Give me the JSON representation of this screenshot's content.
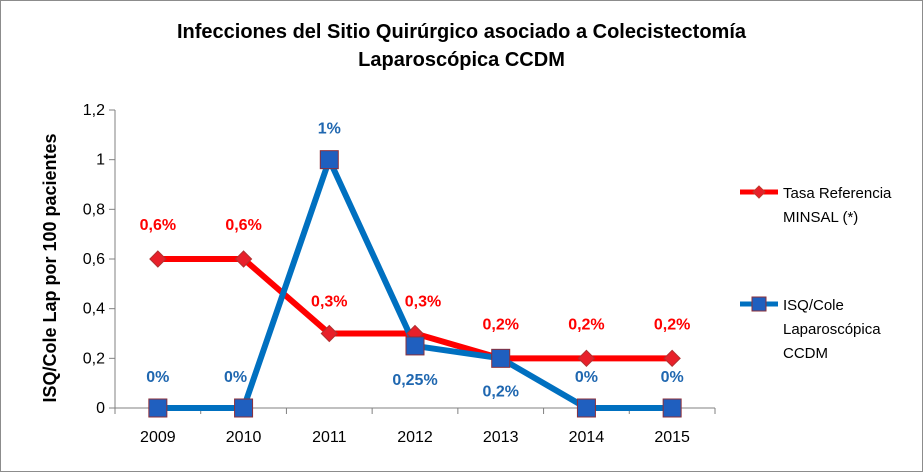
{
  "chart_data": {
    "type": "line",
    "title_line1": "Infecciones del Sitio Quirúrgico asociado a Colecistectomía",
    "title_line2": "Laparoscópica CCDM",
    "xlabel": "",
    "ylabel": "ISQ/Cole Lap por 100 pacientes",
    "categories": [
      "2009",
      "2010",
      "2011",
      "2012",
      "2013",
      "2014",
      "2015"
    ],
    "ylim": [
      0,
      1.2
    ],
    "yticks": [
      "0",
      "0,2",
      "0,4",
      "0,6",
      "0,8",
      "1",
      "1,2"
    ],
    "grid": false,
    "legend_position": "right",
    "series": [
      {
        "name": "Tasa Referencia MINSAL (*)",
        "values": [
          0.6,
          0.6,
          0.3,
          0.3,
          0.2,
          0.2,
          0.2
        ],
        "labels": [
          "0,6%",
          "0,6%",
          "0,3%",
          "0,3%",
          "0,2%",
          "0,2%",
          "0,2%"
        ],
        "color": "#ff0000",
        "marker_color": "#e8202a",
        "marker": "diamond",
        "label_color": "#ff0000"
      },
      {
        "name": "ISQ/Cole Laparoscópica CCDM",
        "values": [
          0,
          0,
          1,
          0.25,
          0.2,
          0,
          0
        ],
        "labels": [
          "0%",
          "0%",
          "1%",
          "0,25%",
          "0,2%",
          "0%",
          "0%"
        ],
        "color": "#0070c0",
        "marker_color": "#1f5fbf",
        "marker": "square",
        "label_color": "#1f67b0"
      }
    ]
  }
}
